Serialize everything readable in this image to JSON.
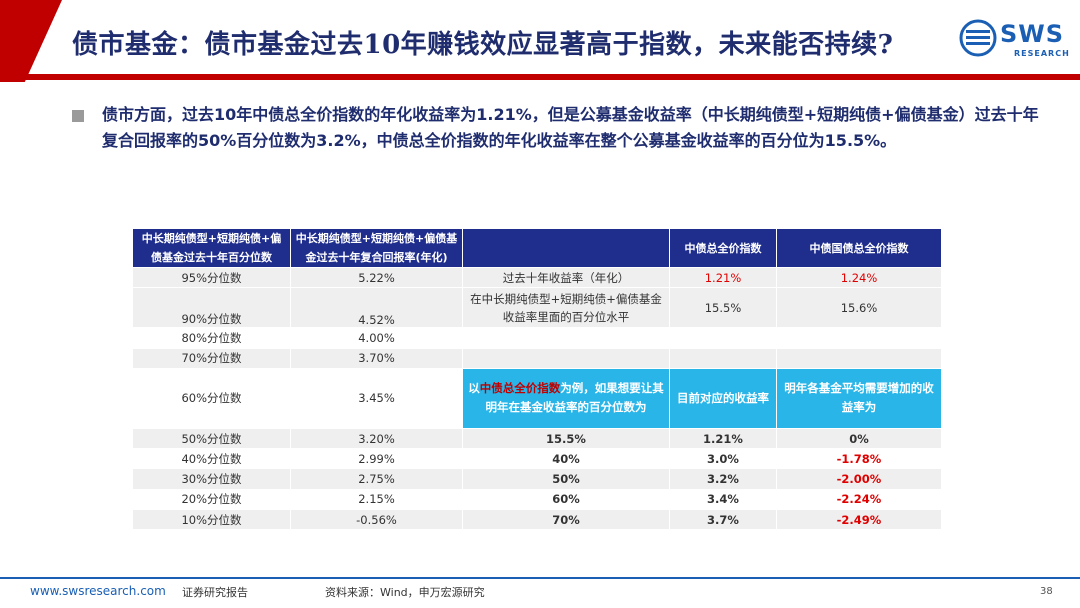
{
  "header": {
    "title": "债市基金：债市基金过去10年赚钱效应显著高于指数，未来能否持续?",
    "logo_text": "SWS",
    "logo_sub": "RESEARCH"
  },
  "bullet": {
    "text": "债市方面，过去10年中债总全价指数的年化收益率为1.21%，但是公募基金收益率（中长期纯债型+短期纯债+偏债基金）过去十年复合回报率的50%百分位数为3.2%，中债总全价指数的年化收益率在整个公募基金收益率的百分位为15.5%。"
  },
  "table": {
    "headers": [
      "中长期纯债型+短期纯债+偏债基金过去十年百分位数",
      "中长期纯债型+短期纯债+偏债基金过去十年复合回报率(年化)",
      "",
      "中债总全价指数",
      "中债国债总全价指数"
    ],
    "rows": [
      {
        "pct": "95%分位数",
        "ret": "5.22%",
        "label": "过去十年收益率（年化）",
        "c1": "1.21%",
        "c2": "1.24%"
      },
      {
        "pct": "90%分位数",
        "ret": "4.52%",
        "label": "在中长期纯债型+短期纯债+偏债基金收益率里面的百分位水平",
        "c1": "15.5%",
        "c2": "15.6%"
      },
      {
        "pct": "80%分位数",
        "ret": "4.00%"
      },
      {
        "pct": "70%分位数",
        "ret": "3.70%"
      },
      {
        "pct": "60%分位数",
        "ret": "3.45%"
      },
      {
        "pct": "50%分位数",
        "ret": "3.20%",
        "a": "15.5%",
        "b": "1.21%",
        "c": "0%"
      },
      {
        "pct": "40%分位数",
        "ret": "2.99%",
        "a": "40%",
        "b": "3.0%",
        "c": "-1.78%"
      },
      {
        "pct": "30%分位数",
        "ret": "2.75%",
        "a": "50%",
        "b": "3.2%",
        "c": "-2.00%"
      },
      {
        "pct": "20%分位数",
        "ret": "2.15%",
        "a": "60%",
        "b": "3.4%",
        "c": "-2.24%"
      },
      {
        "pct": "10%分位数",
        "ret": "-0.56%",
        "a": "70%",
        "b": "3.7%",
        "c": "-2.49%"
      }
    ],
    "subheader": {
      "col3_pre": "以",
      "col3_hl": "中债总全价指数",
      "col3_post": "为例，如果想要让其明年在基金收益率的百分位数为",
      "col4": "目前对应的收益率",
      "col5": "明年各基金平均需要增加的收益率为"
    }
  },
  "colors": {
    "navy": "#1f2d8c",
    "red": "#c00000",
    "cyan": "#29b5e8",
    "blue": "#1a5fb4"
  },
  "footer": {
    "url": "www.swsresearch.com",
    "report": "证券研究报告",
    "source": "资料来源：Wind，申万宏源研究",
    "page": "38"
  }
}
